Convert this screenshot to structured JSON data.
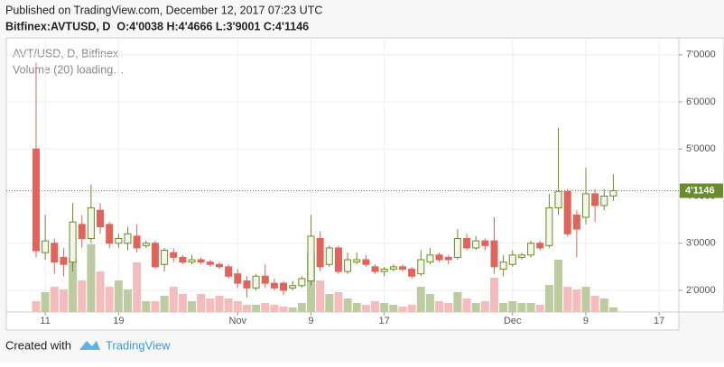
{
  "header": {
    "published": "Published on TradingView.com, December 12, 2017 07:23 UTC",
    "symbol_line": "Bitfinex:AVTUSD, D  O:4'0038 H:4'4666 L:3'9001 C:4'1146"
  },
  "chart_data": {
    "type": "candlestick",
    "title": "AVT/USD, D, Bitfinex",
    "subtitle": "Volume (20) loading…",
    "open": [
      5.0,
      2.8,
      3.0,
      2.7,
      2.6,
      3.4,
      3.1,
      3.7,
      3.4,
      3.0,
      3.0,
      3.15,
      2.95,
      3.0,
      2.55,
      2.8,
      2.7,
      2.6,
      2.65,
      2.6,
      2.55,
      2.5,
      2.35,
      2.2,
      2.05,
      2.3,
      2.15,
      2.15,
      2.05,
      2.1,
      2.2,
      3.1,
      2.55,
      2.9,
      2.4,
      2.6,
      2.65,
      2.5,
      2.4,
      2.45,
      2.5,
      2.45,
      2.35,
      2.6,
      2.75,
      2.7,
      2.7,
      3.1,
      2.9,
      3.05,
      3.05,
      2.45,
      2.55,
      2.7,
      2.75,
      3.0,
      2.95,
      3.75,
      4.1,
      3.6,
      3.55,
      4.05,
      3.8,
      4.0038
    ],
    "high": [
      6.83,
      3.6,
      3.1,
      2.9,
      3.85,
      3.6,
      4.25,
      3.85,
      3.45,
      3.2,
      3.35,
      3.4,
      3.05,
      3.05,
      2.9,
      2.9,
      2.75,
      2.75,
      2.7,
      2.65,
      2.6,
      2.55,
      2.45,
      2.3,
      2.35,
      2.55,
      2.25,
      2.2,
      2.2,
      2.3,
      3.6,
      3.25,
      2.95,
      2.95,
      2.8,
      2.8,
      2.75,
      2.55,
      2.5,
      2.55,
      2.55,
      2.5,
      2.85,
      2.9,
      2.8,
      2.75,
      3.3,
      3.2,
      3.15,
      3.1,
      3.55,
      2.75,
      2.85,
      2.8,
      3.05,
      3.05,
      4.05,
      5.45,
      4.15,
      3.7,
      4.6,
      4.15,
      4.15,
      4.4666
    ],
    "low": [
      2.7,
      2.65,
      2.35,
      2.3,
      2.4,
      2.9,
      3.0,
      3.2,
      2.9,
      2.9,
      2.85,
      2.8,
      2.9,
      2.45,
      2.4,
      2.6,
      2.55,
      2.55,
      2.55,
      2.5,
      2.45,
      2.25,
      2.05,
      1.85,
      2.0,
      2.05,
      2.0,
      1.9,
      2.0,
      2.05,
      2.1,
      2.4,
      2.5,
      2.35,
      2.35,
      2.55,
      2.5,
      2.35,
      2.3,
      2.4,
      2.4,
      2.25,
      2.3,
      2.55,
      2.6,
      2.55,
      2.65,
      2.85,
      2.85,
      2.85,
      2.35,
      2.3,
      2.5,
      2.65,
      2.7,
      2.85,
      2.9,
      3.6,
      3.15,
      2.7,
      3.4,
      3.45,
      3.7,
      3.9001
    ],
    "close": [
      2.84,
      3.05,
      2.6,
      2.55,
      3.45,
      3.1,
      3.75,
      3.35,
      3.0,
      3.1,
      3.2,
      2.9,
      3.0,
      2.5,
      2.85,
      2.7,
      2.6,
      2.65,
      2.6,
      2.55,
      2.5,
      2.3,
      2.15,
      2.05,
      2.3,
      2.15,
      2.05,
      2.0,
      2.1,
      2.25,
      3.15,
      2.5,
      2.9,
      2.4,
      2.65,
      2.65,
      2.55,
      2.4,
      2.45,
      2.5,
      2.45,
      2.3,
      2.65,
      2.75,
      2.65,
      2.65,
      3.1,
      2.9,
      3.05,
      2.95,
      2.5,
      2.6,
      2.75,
      2.75,
      3.0,
      2.9,
      3.75,
      4.1,
      3.2,
      3.3,
      4.05,
      3.8,
      4.0,
      4.1146
    ],
    "volume": [
      12,
      22,
      28,
      25,
      60,
      35,
      75,
      45,
      28,
      35,
      25,
      55,
      12,
      12,
      18,
      28,
      20,
      12,
      20,
      15,
      18,
      15,
      12,
      8,
      8,
      10,
      8,
      6,
      5,
      10,
      65,
      35,
      20,
      22,
      15,
      10,
      8,
      12,
      10,
      8,
      6,
      8,
      28,
      20,
      12,
      10,
      22,
      15,
      10,
      12,
      38,
      10,
      12,
      10,
      10,
      8,
      30,
      58,
      28,
      25,
      28,
      18,
      15,
      5
    ],
    "vlim": [
      0,
      100
    ],
    "up_color": "#6a8c2a",
    "down_color": "#e0645c",
    "up_volume_color": "#bccca0",
    "down_volume_color": "#f4bcbc",
    "ylim": [
      1.54,
      7.36
    ],
    "yticks": [
      {
        "value": 2,
        "label": "2'0000"
      },
      {
        "value": 3,
        "label": "3'0000"
      },
      {
        "value": 4,
        "label": "4'0000"
      },
      {
        "value": 5,
        "label": "5'0000"
      },
      {
        "value": 6,
        "label": "6'0000"
      },
      {
        "value": 7,
        "label": "7'0000"
      }
    ],
    "xlim": [
      -3.25,
      70.15
    ],
    "xticks": [
      {
        "value": 1,
        "label": "11"
      },
      {
        "value": 9,
        "label": "19"
      },
      {
        "value": 22,
        "label": "Nov"
      },
      {
        "value": 30,
        "label": "9"
      },
      {
        "value": 38,
        "label": "17"
      },
      {
        "value": 52,
        "label": "Dec"
      },
      {
        "value": 60,
        "label": "9"
      },
      {
        "value": 68,
        "label": "17"
      }
    ],
    "last_price": {
      "value": 4.1146,
      "label": "4'1146"
    },
    "grid": true
  },
  "footer": {
    "created": "Created with",
    "brand": "TradingView"
  }
}
